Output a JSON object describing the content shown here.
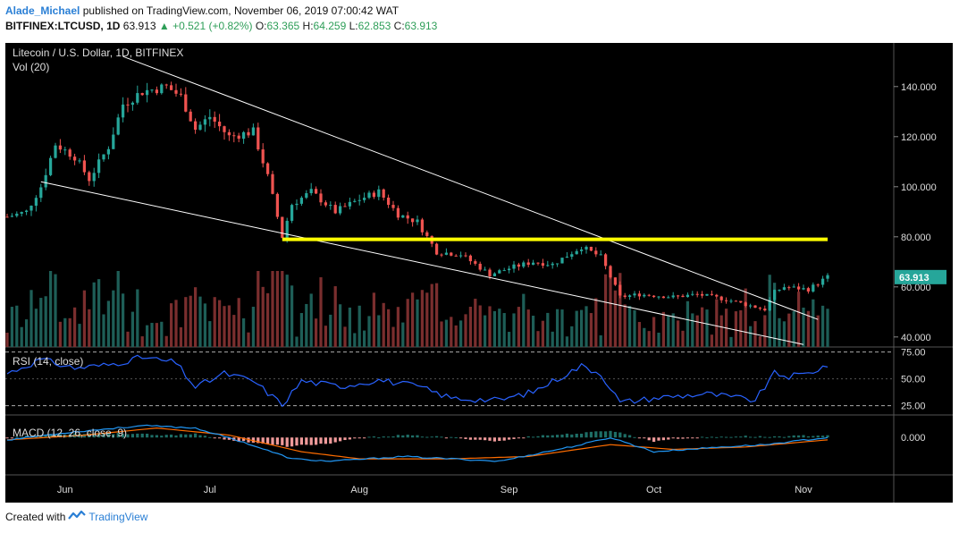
{
  "header": {
    "author": "Alade_Michael",
    "published": "published on TradingView.com, November 06, 2019 07:00:42 WAT",
    "symbol": "BITFINEX:LTCUSD, 1D",
    "last": "63.913",
    "change": "+0.521 (+0.82%)",
    "o_label": "O:",
    "o": "63.365",
    "h_label": "H:",
    "h": "64.259",
    "l_label": "L:",
    "l": "62.853",
    "c_label": "C:",
    "c": "63.913"
  },
  "footer": {
    "created": "Created with",
    "brand": "TradingView"
  },
  "colors": {
    "background": "#000000",
    "up": "#26a69a",
    "down": "#ef5350",
    "trendline": "#ffffff",
    "resistance": "#ffff00",
    "rsi": "#2962ff",
    "macd": "#2196f3",
    "signal": "#ff6d00",
    "price_badge": "#26a69a"
  },
  "chart_data": {
    "type": "candlestick",
    "title": "Litecoin / U.S. Dollar, 1D, BITFINEX",
    "volume_label": "Vol (20)",
    "price_axis": {
      "ticks": [
        "140.000",
        "120.000",
        "100.000",
        "80.000",
        "60.000",
        "40.000"
      ],
      "range": [
        36,
        156
      ]
    },
    "last_price": "63.913",
    "x_ticks": [
      "Jun",
      "Jul",
      "Aug",
      "Sep",
      "Oct",
      "Nov"
    ],
    "x_range": [
      "2019-05-20",
      "2019-11-06"
    ],
    "keypoints": [
      [
        "2019-05-20",
        88
      ],
      [
        "2019-05-24",
        90
      ],
      [
        "2019-05-27",
        100
      ],
      [
        "2019-05-30",
        117
      ],
      [
        "2019-06-03",
        112
      ],
      [
        "2019-06-06",
        103
      ],
      [
        "2019-06-10",
        116
      ],
      [
        "2019-06-13",
        133
      ],
      [
        "2019-06-17",
        138
      ],
      [
        "2019-06-22",
        140
      ],
      [
        "2019-06-25",
        136
      ],
      [
        "2019-06-28",
        123
      ],
      [
        "2019-07-01",
        128
      ],
      [
        "2019-07-05",
        120
      ],
      [
        "2019-07-10",
        122
      ],
      [
        "2019-07-13",
        104
      ],
      [
        "2019-07-16",
        80
      ],
      [
        "2019-07-18",
        93
      ],
      [
        "2019-07-22",
        98
      ],
      [
        "2019-07-27",
        90
      ],
      [
        "2019-08-01",
        95
      ],
      [
        "2019-08-05",
        98
      ],
      [
        "2019-08-09",
        89
      ],
      [
        "2019-08-13",
        86
      ],
      [
        "2019-08-17",
        74
      ],
      [
        "2019-08-22",
        73
      ],
      [
        "2019-08-28",
        65
      ],
      [
        "2019-09-02",
        68
      ],
      [
        "2019-09-06",
        70
      ],
      [
        "2019-09-10",
        69
      ],
      [
        "2019-09-16",
        76
      ],
      [
        "2019-09-20",
        72
      ],
      [
        "2019-09-24",
        56
      ],
      [
        "2019-09-28",
        57
      ],
      [
        "2019-10-05",
        56
      ],
      [
        "2019-10-10",
        57
      ],
      [
        "2019-10-16",
        55
      ],
      [
        "2019-10-22",
        52
      ],
      [
        "2019-10-24",
        51
      ],
      [
        "2019-10-26",
        58
      ],
      [
        "2019-10-28",
        60
      ],
      [
        "2019-11-02",
        59
      ],
      [
        "2019-11-06",
        64
      ]
    ],
    "resistance": {
      "value": 79,
      "from": "2019-07-16",
      "to": "2019-11-06"
    },
    "trendlines": [
      {
        "from": [
          "2019-06-13",
          152
        ],
        "to": [
          "2019-11-04",
          47
        ]
      },
      {
        "from": [
          "2019-05-27",
          102
        ],
        "to": [
          "2019-11-01",
          37
        ]
      }
    ],
    "rsi": {
      "label": "RSI (14, close)",
      "ticks": [
        "75.00",
        "50.00",
        "25.00"
      ],
      "range": [
        18,
        78
      ],
      "keypoints": [
        [
          "2019-05-20",
          55
        ],
        [
          "2019-05-27",
          68
        ],
        [
          "2019-06-03",
          60
        ],
        [
          "2019-06-10",
          63
        ],
        [
          "2019-06-17",
          70
        ],
        [
          "2019-06-24",
          65
        ],
        [
          "2019-06-28",
          42
        ],
        [
          "2019-07-04",
          55
        ],
        [
          "2019-07-10",
          48
        ],
        [
          "2019-07-16",
          26
        ],
        [
          "2019-07-20",
          48
        ],
        [
          "2019-07-28",
          43
        ],
        [
          "2019-08-05",
          49
        ],
        [
          "2019-08-13",
          43
        ],
        [
          "2019-08-20",
          32
        ],
        [
          "2019-08-30",
          30
        ],
        [
          "2019-09-06",
          38
        ],
        [
          "2019-09-16",
          62
        ],
        [
          "2019-09-20",
          55
        ],
        [
          "2019-09-24",
          28
        ],
        [
          "2019-10-03",
          33
        ],
        [
          "2019-10-12",
          36
        ],
        [
          "2019-10-22",
          30
        ],
        [
          "2019-10-26",
          55
        ],
        [
          "2019-10-29",
          52
        ],
        [
          "2019-11-02",
          55
        ],
        [
          "2019-11-06",
          63
        ]
      ]
    },
    "macd": {
      "label": "MACD (12, 26, close, 9)",
      "ticks": [
        "0.000"
      ],
      "range": [
        -15,
        8
      ],
      "macd_keypoints": [
        [
          "2019-05-20",
          -1
        ],
        [
          "2019-06-01",
          2
        ],
        [
          "2019-06-17",
          5
        ],
        [
          "2019-06-28",
          4
        ],
        [
          "2019-07-08",
          -2
        ],
        [
          "2019-07-18",
          -9
        ],
        [
          "2019-07-26",
          -10
        ],
        [
          "2019-08-10",
          -8
        ],
        [
          "2019-08-30",
          -10
        ],
        [
          "2019-09-16",
          -3
        ],
        [
          "2019-09-22",
          0
        ],
        [
          "2019-10-01",
          -6
        ],
        [
          "2019-10-15",
          -4
        ],
        [
          "2019-10-24",
          -3
        ],
        [
          "2019-11-06",
          0
        ]
      ],
      "signal_keypoints": [
        [
          "2019-05-20",
          -1
        ],
        [
          "2019-06-05",
          1
        ],
        [
          "2019-06-20",
          4
        ],
        [
          "2019-07-05",
          1
        ],
        [
          "2019-07-20",
          -6
        ],
        [
          "2019-08-01",
          -9
        ],
        [
          "2019-08-20",
          -9
        ],
        [
          "2019-09-05",
          -8
        ],
        [
          "2019-09-22",
          -3
        ],
        [
          "2019-10-05",
          -5
        ],
        [
          "2019-10-20",
          -4
        ],
        [
          "2019-11-06",
          -1
        ]
      ]
    }
  }
}
